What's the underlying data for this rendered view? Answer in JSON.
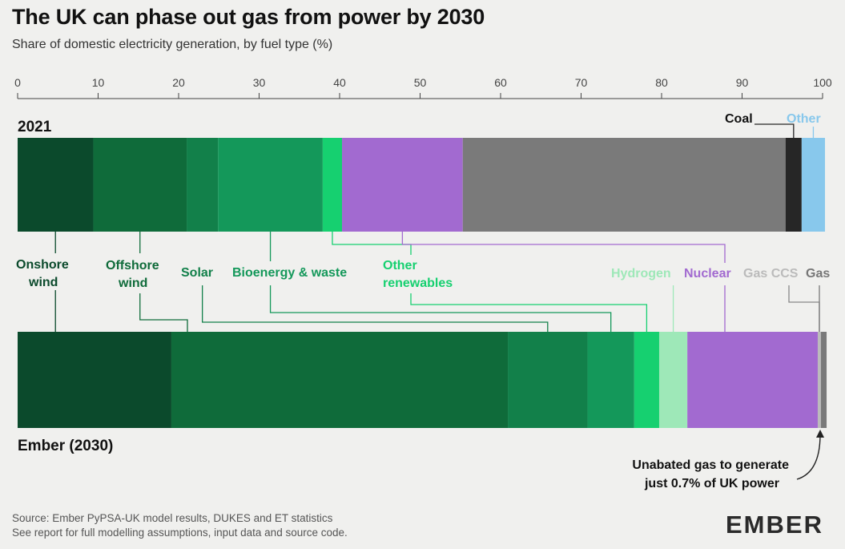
{
  "header": {
    "title": "The UK can phase out gas from power by 2030",
    "subtitle": "Share of domestic electricity generation, by fuel type (%)"
  },
  "footer": {
    "source_line1": "Source: Ember PyPSA-UK model results, DUKES and ET statistics",
    "source_line2": "See report for full modelling assumptions, input data and source code.",
    "logo": "EMBER"
  },
  "colors": {
    "onshore_wind": "#0b4a2c",
    "offshore_wind": "#0f6b3a",
    "solar": "#12804a",
    "bioenergy": "#14985a",
    "other_renewables": "#16d070",
    "hydrogen": "#9ee8b8",
    "nuclear": "#a26ad0",
    "gas_ccs": "#bbbbbb",
    "gas": "#7a7a7a",
    "coal": "#262626",
    "other": "#88c8ec"
  },
  "chart_data": {
    "type": "bar",
    "orientation": "horizontal-stacked",
    "x_axis": {
      "range": [
        0,
        100
      ],
      "ticks": [
        0,
        10,
        20,
        30,
        40,
        50,
        60,
        70,
        80,
        90,
        100
      ]
    },
    "grid": false,
    "categories": [
      "2021",
      "Ember (2030)"
    ],
    "series": [
      {
        "key": "onshore_wind",
        "name": "Onshore wind",
        "values": [
          9.4,
          19.1
        ]
      },
      {
        "key": "offshore_wind",
        "name": "Offshore wind",
        "values": [
          11.6,
          41.8
        ]
      },
      {
        "key": "solar",
        "name": "Solar",
        "values": [
          3.9,
          9.9
        ]
      },
      {
        "key": "bioenergy",
        "name": "Bioenergy & waste",
        "values": [
          13.0,
          5.8
        ]
      },
      {
        "key": "other_renewables",
        "name": "Other renewables",
        "values": [
          2.4,
          3.1
        ]
      },
      {
        "key": "hydrogen",
        "name": "Hydrogen",
        "values": [
          0,
          3.5
        ]
      },
      {
        "key": "nuclear",
        "name": "Nuclear",
        "values": [
          15.0,
          16.2
        ]
      },
      {
        "key": "gas_ccs",
        "name": "Gas CCS",
        "values": [
          0,
          0.4
        ]
      },
      {
        "key": "gas",
        "name": "Gas",
        "values": [
          40.1,
          0.7
        ]
      },
      {
        "key": "coal",
        "name": "Coal",
        "values": [
          2.0,
          0
        ]
      },
      {
        "key": "other",
        "name": "Other",
        "values": [
          2.9,
          0
        ]
      }
    ],
    "annotation": {
      "line1": "Unabated gas to generate",
      "line2": "just 0.7% of UK power"
    }
  }
}
